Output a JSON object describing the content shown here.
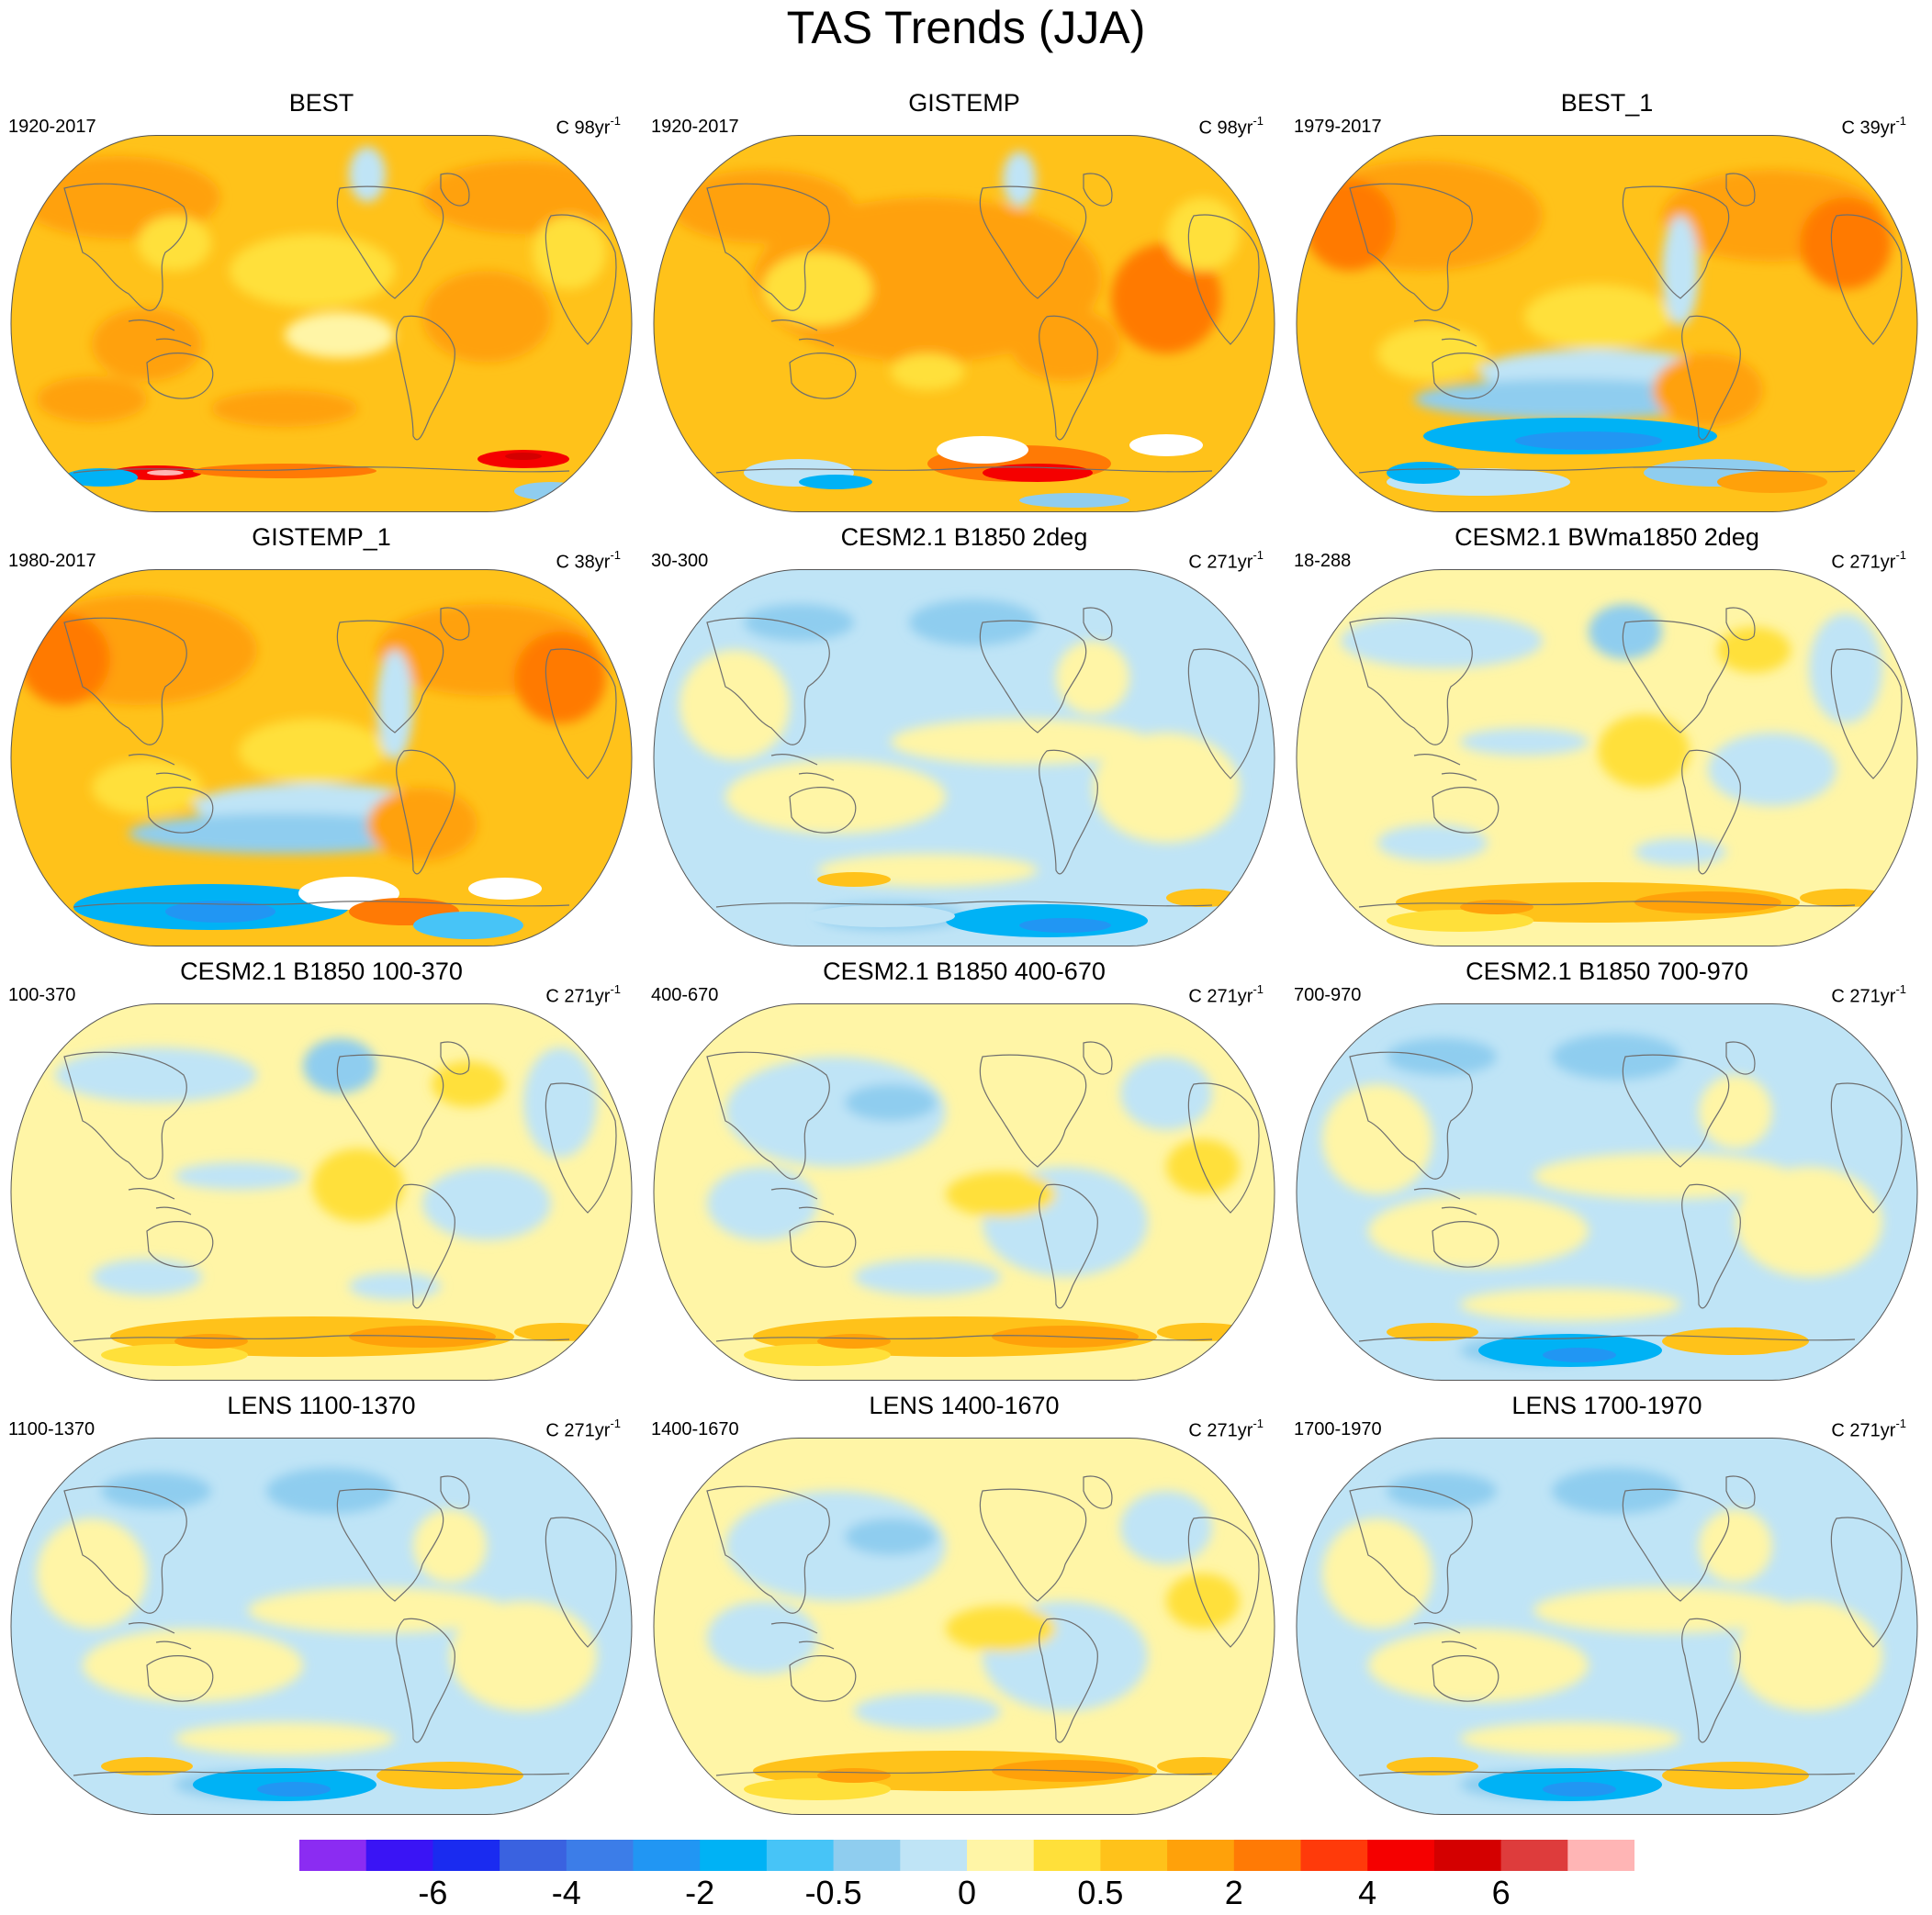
{
  "title": "TAS Trends (JJA)",
  "panels": [
    {
      "title": "BEST",
      "left": "1920-2017",
      "right_base": "C 98yr",
      "right_sup": "-1",
      "style": "obs-warm",
      "ant": "best"
    },
    {
      "title": "GISTEMP",
      "left": "1920-2017",
      "right_base": "C 98yr",
      "right_sup": "-1",
      "style": "obs-warm2",
      "ant": "gis"
    },
    {
      "title": "BEST_1",
      "left": "1979-2017",
      "right_base": "C 39yr",
      "right_sup": "-1",
      "style": "obs-recent",
      "ant": "best1"
    },
    {
      "title": "GISTEMP_1",
      "left": "1980-2017",
      "right_base": "C 38yr",
      "right_sup": "-1",
      "style": "obs-recent",
      "ant": "gis1"
    },
    {
      "title": "CESM2.1 B1850 2deg",
      "left": "30-300",
      "right_base": "C 271yr",
      "right_sup": "-1",
      "style": "model-cool",
      "ant": "cool"
    },
    {
      "title": "CESM2.1 BWma1850 2deg",
      "left": "18-288",
      "right_base": "C 271yr",
      "right_sup": "-1",
      "style": "model-warm",
      "ant": "warm"
    },
    {
      "title": "CESM2.1 B1850 100-370",
      "left": "100-370",
      "right_base": "C 271yr",
      "right_sup": "-1",
      "style": "model-warm",
      "ant": "warm"
    },
    {
      "title": "CESM2.1 B1850 400-670",
      "left": "400-670",
      "right_base": "C 271yr",
      "right_sup": "-1",
      "style": "model-mixed",
      "ant": "warm"
    },
    {
      "title": "CESM2.1 B1850 700-970",
      "left": "700-970",
      "right_base": "C 271yr",
      "right_sup": "-1",
      "style": "model-cool",
      "ant": "mixed"
    },
    {
      "title": "LENS 1100-1370",
      "left": "1100-1370",
      "right_base": "C 271yr",
      "right_sup": "-1",
      "style": "model-cool",
      "ant": "mixed"
    },
    {
      "title": "LENS 1400-1670",
      "left": "1400-1670",
      "right_base": "C 271yr",
      "right_sup": "-1",
      "style": "model-mixed",
      "ant": "warm"
    },
    {
      "title": "LENS 1700-1970",
      "left": "1700-1970",
      "right_base": "C 271yr",
      "right_sup": "-1",
      "style": "model-cool",
      "ant": "mixed"
    }
  ],
  "colorbar": {
    "colors": [
      "#8b2cf2",
      "#3a14f5",
      "#1a2bf0",
      "#3a62e0",
      "#3c7de8",
      "#2196f3",
      "#00b2f5",
      "#47c4f7",
      "#8fcdef",
      "#bfe4f6",
      "#fff5a6",
      "#ffe03a",
      "#ffc21a",
      "#ffa10a",
      "#ff7a05",
      "#ff3a0a",
      "#f50000",
      "#d40000",
      "#de3c3c",
      "#ffb5b5"
    ],
    "labels": [
      "-6",
      "-4",
      "-2",
      "-0.5",
      "0",
      "0.5",
      "2",
      "4",
      "6"
    ],
    "label_after_box": [
      2,
      4,
      6,
      8,
      10,
      12,
      14,
      16,
      18
    ]
  }
}
